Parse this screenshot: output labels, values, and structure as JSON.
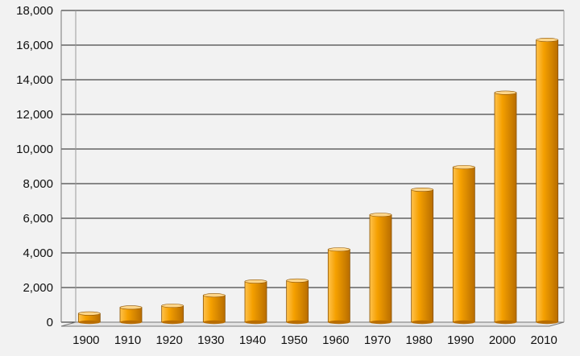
{
  "chart_data": {
    "type": "bar",
    "categories": [
      "1900",
      "1910",
      "1920",
      "1930",
      "1940",
      "1950",
      "1960",
      "1970",
      "1980",
      "1990",
      "2000",
      "2010"
    ],
    "values": [
      500,
      850,
      950,
      1550,
      2350,
      2400,
      4200,
      6200,
      7650,
      8950,
      13250,
      16300
    ],
    "y_ticks": [
      "0",
      "2,000",
      "4,000",
      "6,000",
      "8,000",
      "10,000",
      "12,000",
      "14,000",
      "16,000",
      "18,000"
    ],
    "ylim": [
      0,
      18000
    ],
    "grid": true,
    "title": "",
    "xlabel": "",
    "ylabel": "",
    "colors": {
      "bar_light": "#ffc24d",
      "bar_mid": "#f5a000",
      "bar_dark": "#b86d00",
      "bar_top": "#ffd68a",
      "background": "#f2f2f2",
      "grid": "#1c1c1c"
    }
  }
}
